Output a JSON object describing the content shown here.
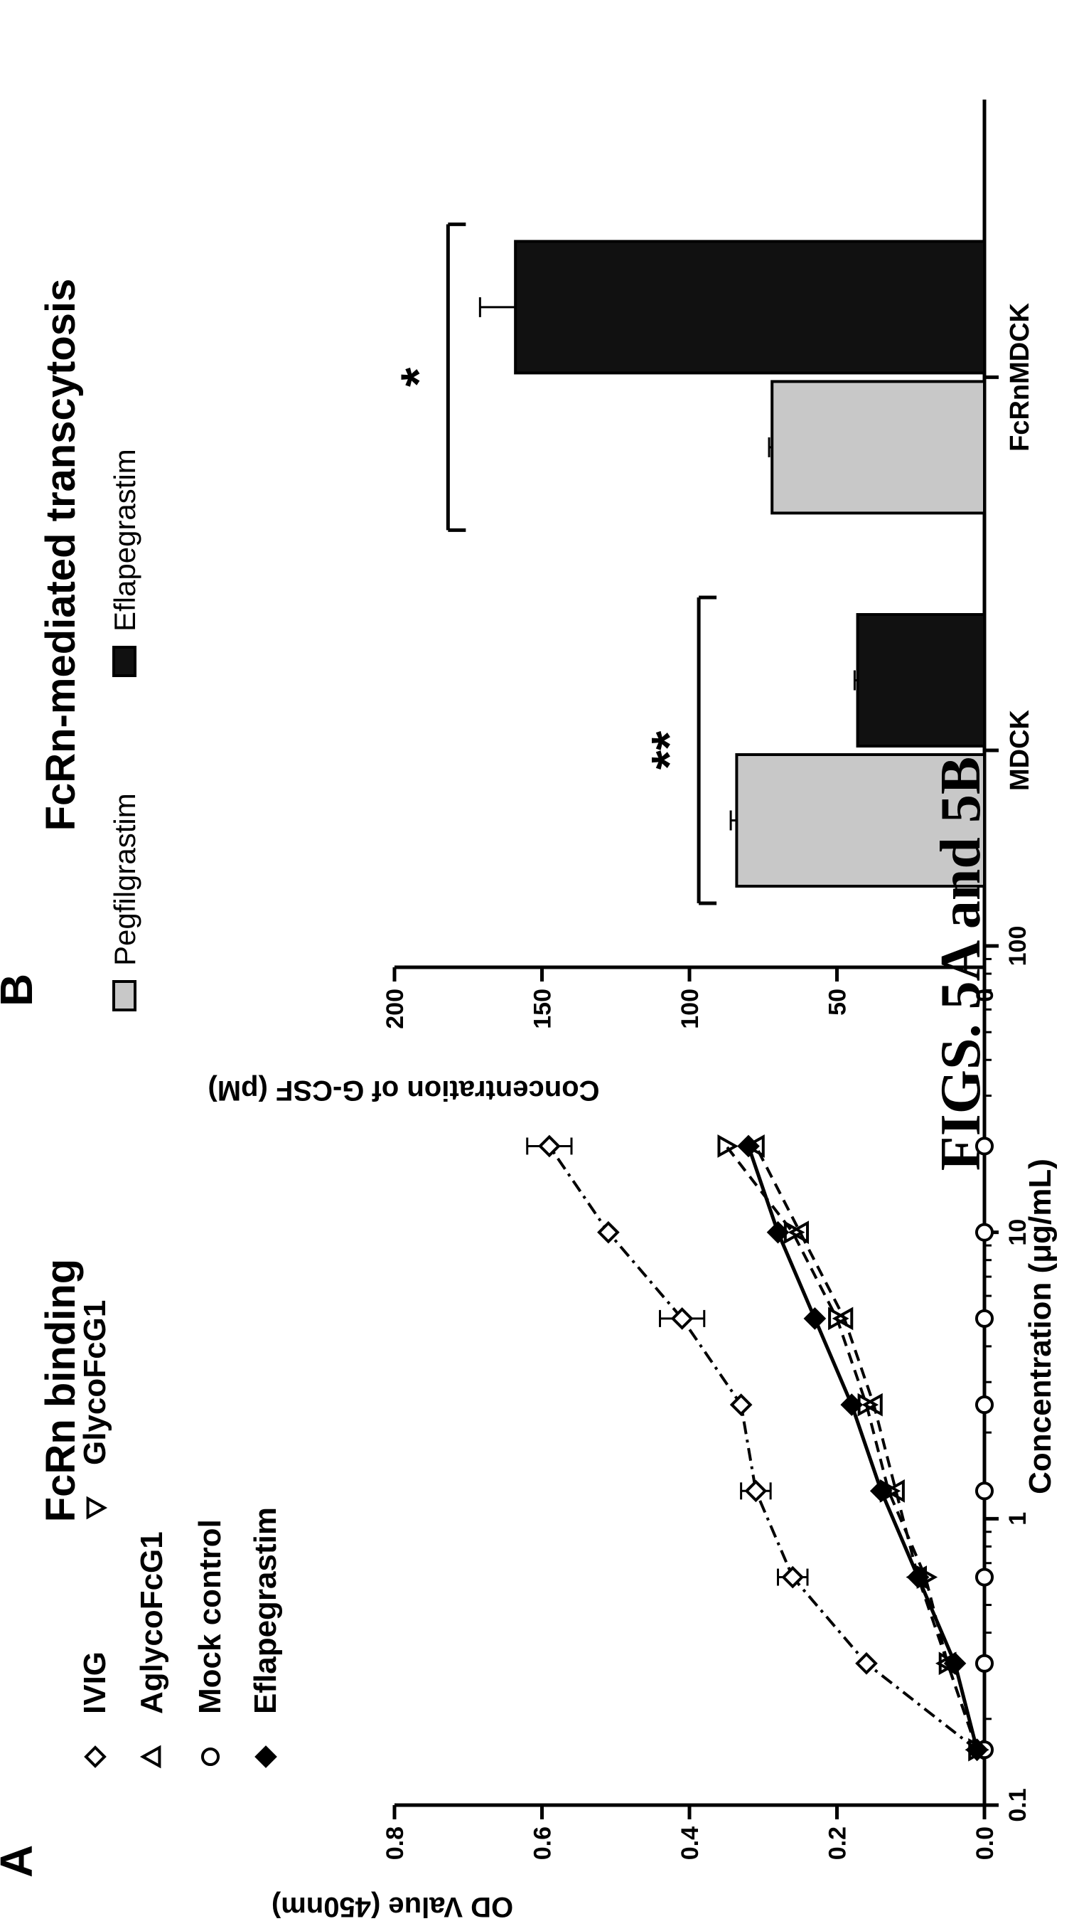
{
  "figure_caption": "FIGS. 5A and 5B",
  "chart_data": [
    {
      "panel_label": "A",
      "type": "scatter",
      "title": "FcRn binding",
      "xlabel": "Concentration (μg/mL)",
      "ylabel": "OD Value (450nm)",
      "xscale": "log",
      "xlim": [
        0.1,
        100
      ],
      "ylim": [
        0.0,
        0.8
      ],
      "x_ticks": [
        "0.1",
        "1",
        "10",
        "100"
      ],
      "y_ticks": [
        "0.0",
        "0.2",
        "0.4",
        "0.6",
        "0.8"
      ],
      "legend_placement": "top-left",
      "series": [
        {
          "name": "IVIG",
          "marker": "diamond-open",
          "line": "dash-dot",
          "x": [
            0.156,
            0.3125,
            0.625,
            1.25,
            2.5,
            5,
            10,
            20
          ],
          "y": [
            0.01,
            0.16,
            0.26,
            0.31,
            0.33,
            0.41,
            0.51,
            0.59
          ],
          "err": [
            0,
            0,
            0.02,
            0.02,
            0,
            0.03,
            0,
            0.03
          ]
        },
        {
          "name": "AglycoFcG1",
          "marker": "triangle-up-open",
          "line": "dashed",
          "x": [
            0.156,
            0.3125,
            0.625,
            1.25,
            2.5,
            5,
            10,
            20
          ],
          "y": [
            0.01,
            0.05,
            0.09,
            0.12,
            0.15,
            0.19,
            0.25,
            0.31
          ]
        },
        {
          "name": "Mock control",
          "marker": "circle-open",
          "line": "dash-dot",
          "x": [
            0.156,
            0.3125,
            0.625,
            1.25,
            2.5,
            5,
            10,
            20
          ],
          "y": [
            0.0,
            0.0,
            0.0,
            0.0,
            0.0,
            0.0,
            0.0,
            0.0
          ]
        },
        {
          "name": "Eflapegrastim",
          "marker": "diamond-filled",
          "line": "solid",
          "x": [
            0.156,
            0.3125,
            0.625,
            1.25,
            2.5,
            5,
            10,
            20
          ],
          "y": [
            0.01,
            0.04,
            0.09,
            0.14,
            0.18,
            0.23,
            0.28,
            0.32
          ]
        },
        {
          "name": "GlycoFcG1",
          "marker": "triangle-down-open",
          "line": "dashed",
          "x": [
            0.156,
            0.3125,
            0.625,
            1.25,
            2.5,
            5,
            10,
            20
          ],
          "y": [
            0.01,
            0.05,
            0.08,
            0.13,
            0.16,
            0.2,
            0.26,
            0.35
          ]
        }
      ]
    },
    {
      "panel_label": "B",
      "type": "bar",
      "title": "FcRn-mediated transcytosis",
      "xlabel": "",
      "ylabel": "Concentration of G-CSF (pM)",
      "ylim": [
        0,
        200
      ],
      "y_ticks": [
        "0",
        "50",
        "100",
        "150",
        "200"
      ],
      "categories": [
        "MDCK",
        "FcRnMDCK"
      ],
      "legend_placement": "top",
      "series": [
        {
          "name": "Pegfilgrastim",
          "color": "#c8c8c8",
          "values": [
            84,
            72
          ],
          "err": [
            2,
            1
          ]
        },
        {
          "name": "Eflapegrastim",
          "color": "#111111",
          "values": [
            43,
            159
          ],
          "err": [
            1,
            12
          ]
        }
      ],
      "significance": [
        {
          "label": "**",
          "category": "MDCK"
        },
        {
          "label": "*",
          "category": "FcRnMDCK"
        }
      ]
    }
  ]
}
